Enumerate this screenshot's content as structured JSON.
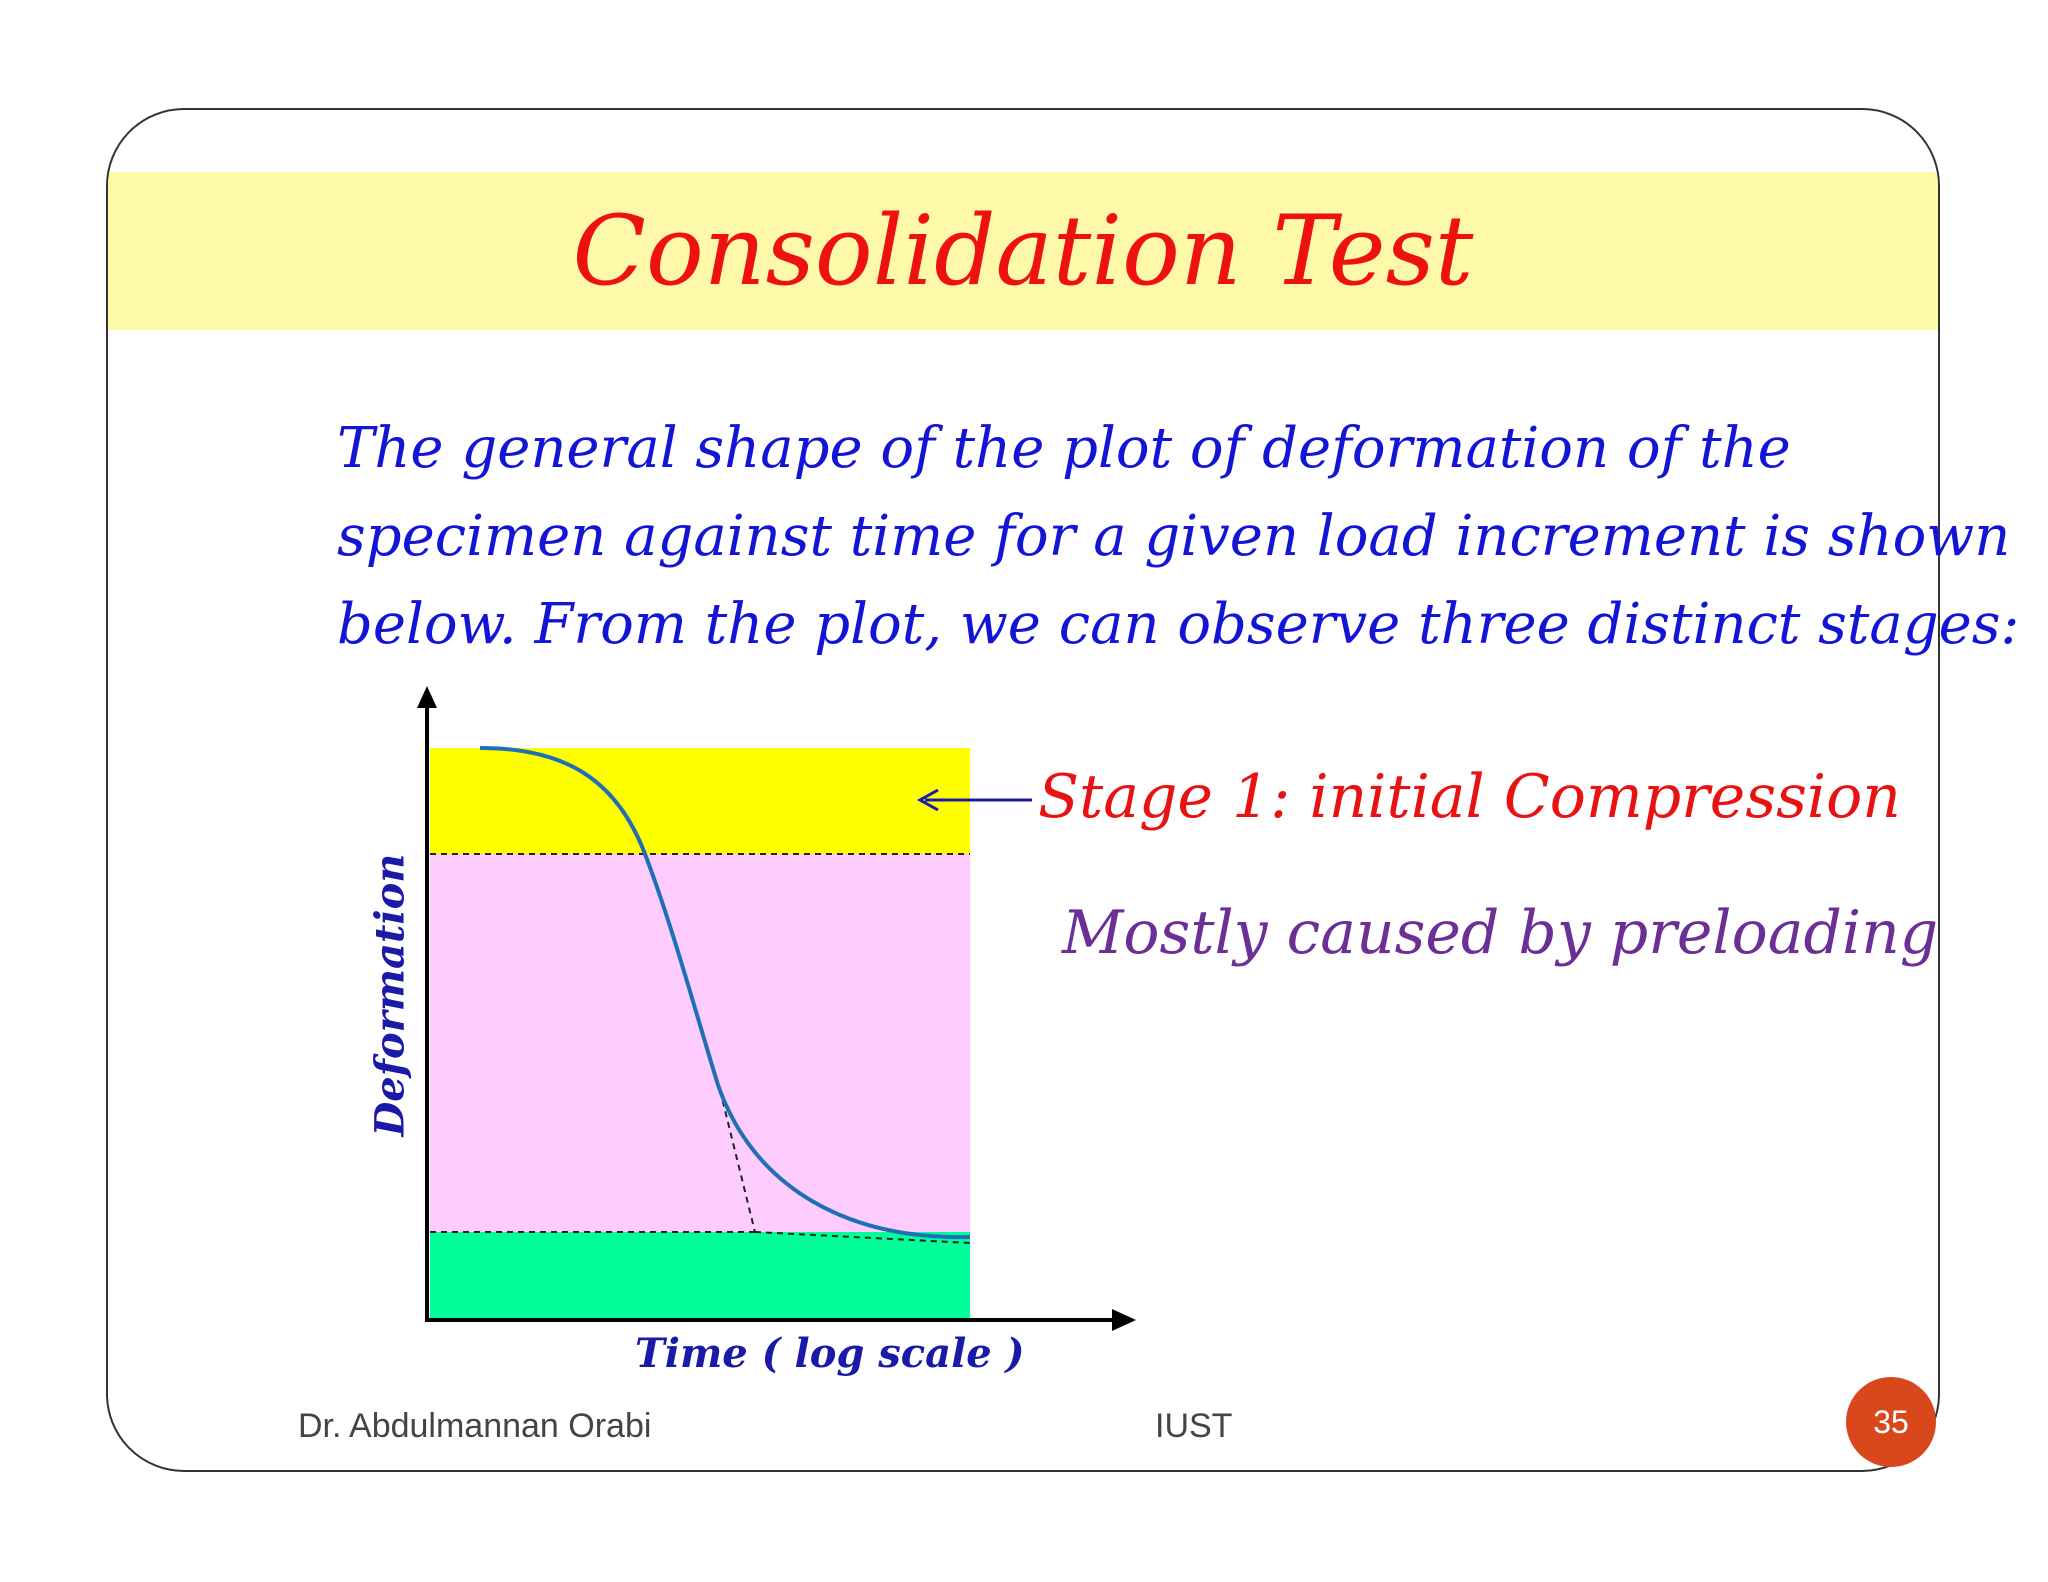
{
  "slide": {
    "title": "Consolidation Test",
    "intro_lines": [
      "The general shape of  the plot of  deformation of  the",
      "specimen against time for a given load increment is shown",
      "below. From the plot, we can observe three distinct stages:"
    ],
    "stage_label": "Stage 1: initial Compression",
    "stage_note": "Mostly caused by preloading",
    "footer_left": "Dr. Abdulmannan Orabi",
    "footer_center": "IUST",
    "page_number": "35"
  },
  "diagram": {
    "x_axis_label": "Time ( log scale )",
    "y_axis_label": "Deformation",
    "colors": {
      "stage1_zone": "#ffff00",
      "stage2_zone": "#ffccff",
      "stage3_zone": "#00ff99",
      "curve": "#1f6fb5",
      "arrow": "#1a1aa8"
    }
  }
}
